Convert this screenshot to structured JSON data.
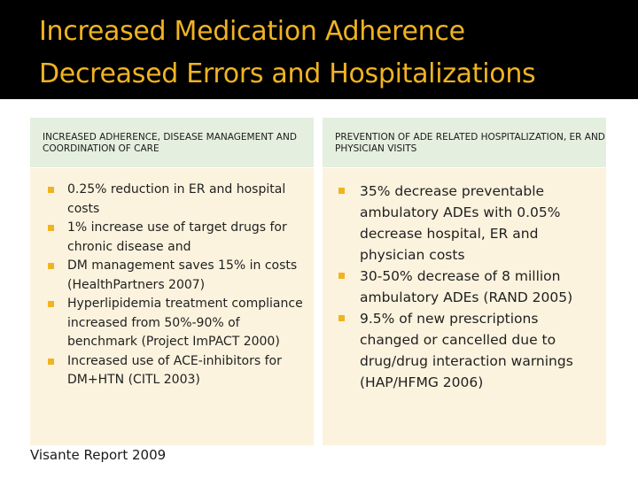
{
  "slide": {
    "title_line1": "Increased Medication Adherence",
    "title_line2": "Decreased Errors and Hospitalizations",
    "accent_color": "#f0b321"
  },
  "left_column": {
    "heading": "INCREASED ADHERENCE, DISEASE MANAGEMENT AND COORDINATION OF CARE",
    "bullets": [
      "0.25% reduction in ER and hospital costs",
      "1% increase use of target drugs for chronic disease and",
      "DM management saves 15% in costs (HealthPartners 2007)",
      "Hyperlipidemia treatment compliance increased from 50%-90% of benchmark (Project ImPACT 2000)",
      "Increased use of ACE-inhibitors for DM+HTN (CITL 2003)"
    ]
  },
  "right_column": {
    "heading": "PREVENTION OF ADE RELATED HOSPITALIZATION, ER AND PHYSICIAN VISITS",
    "bullets": [
      "35% decrease preventable ambulatory ADEs with 0.05% decrease hospital, ER and physician costs",
      "30-50% decrease of 8 million ambulatory ADEs (RAND 2005)",
      "9.5% of new prescriptions changed or cancelled due to drug/drug interaction warnings (HAP/HFMG 2006)"
    ]
  },
  "footer": {
    "source": "Visante Report 2009"
  }
}
